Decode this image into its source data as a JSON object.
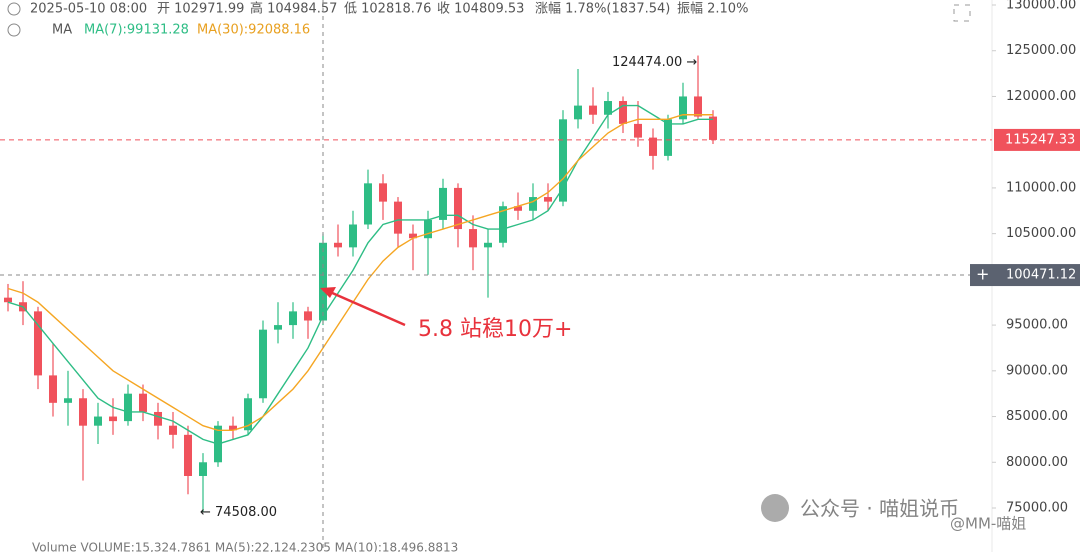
{
  "chart_data": {
    "type": "candlestick",
    "header": {
      "time": "2025-05-10 08:00",
      "open": "开 102971.99",
      "high": "高 104984.57",
      "low": "低 102818.76",
      "close": "收 104809.53",
      "change": "涨幅 1.78%(1837.54)",
      "amplitude": "振幅 2.10%"
    },
    "ma_header": {
      "label": "MA",
      "ma7": "MA(7):99131.28",
      "ma30": "MA(30):92088.16"
    },
    "up_color": "#2ebd85",
    "down_color": "#f0525c",
    "open": [
      98000,
      97500,
      96500,
      89500,
      86500,
      87000,
      84000,
      85000,
      84500,
      87500,
      85500,
      84000,
      83000,
      78500,
      80000,
      84000,
      83500,
      87000,
      94500,
      95000,
      96500,
      95500,
      104000,
      103500,
      106000,
      110500,
      108500,
      105000,
      104500,
      106500,
      110000,
      105500,
      103500,
      104000,
      108000,
      107500,
      109000,
      108500,
      117500,
      119000,
      118000,
      119500,
      117000,
      115500,
      113500,
      117500,
      120000,
      117800
    ],
    "high": [
      99500,
      99800,
      97000,
      93000,
      90000,
      88000,
      86500,
      87000,
      88500,
      88500,
      86500,
      85500,
      84000,
      81000,
      84500,
      85000,
      87500,
      95500,
      97500,
      97500,
      97000,
      105000,
      106000,
      107500,
      112000,
      111500,
      109000,
      106000,
      107500,
      111000,
      110500,
      107000,
      105500,
      108500,
      109500,
      110500,
      110500,
      118500,
      123000,
      121000,
      120500,
      120000,
      119500,
      116500,
      118000,
      121500,
      124474,
      118500
    ],
    "low": [
      96500,
      95000,
      88000,
      85000,
      84000,
      78000,
      82000,
      83000,
      84000,
      84500,
      82500,
      81500,
      76500,
      74508,
      79500,
      82500,
      83000,
      86500,
      93000,
      93500,
      93500,
      95000,
      102500,
      102500,
      105500,
      106500,
      103500,
      101000,
      100500,
      105500,
      103500,
      101000,
      98000,
      103500,
      106500,
      106500,
      107500,
      108000,
      116500,
      117000,
      116500,
      116000,
      114500,
      112000,
      113000,
      117000,
      117500,
      114800
    ],
    "close": [
      97500,
      96500,
      89500,
      86500,
      87000,
      84000,
      85000,
      84500,
      87500,
      85500,
      84000,
      83000,
      78500,
      80000,
      84000,
      83500,
      87000,
      94500,
      95000,
      96500,
      95500,
      104000,
      103500,
      106000,
      110500,
      108500,
      105000,
      104500,
      106500,
      110000,
      105500,
      103500,
      104000,
      108000,
      107500,
      109000,
      108500,
      117500,
      119000,
      118000,
      119500,
      117000,
      115500,
      113500,
      117500,
      120000,
      117800,
      115247.33
    ],
    "series": [
      {
        "name": "MA(7)",
        "color": "#2ebd85",
        "values": [
          97500,
          97000,
          95000,
          93000,
          91000,
          89000,
          87000,
          86000,
          85500,
          85500,
          85000,
          84500,
          83500,
          82500,
          82000,
          82500,
          83000,
          85000,
          87500,
          90000,
          92500,
          96000,
          98500,
          101000,
          104000,
          106000,
          106500,
          106500,
          106500,
          107000,
          107000,
          106000,
          105500,
          105500,
          106000,
          106500,
          107500,
          110000,
          113000,
          115500,
          118000,
          119000,
          119000,
          118000,
          117000,
          117000,
          117500,
          117500
        ]
      },
      {
        "name": "MA(30)",
        "color": "#f5a623",
        "values": [
          99000,
          98500,
          97500,
          96000,
          94500,
          93000,
          91500,
          90000,
          89000,
          88000,
          87000,
          86000,
          85000,
          84000,
          83500,
          83500,
          84000,
          85000,
          86500,
          88000,
          90000,
          92500,
          95000,
          97500,
          100000,
          102000,
          103500,
          104500,
          105000,
          105500,
          106000,
          106500,
          107000,
          107500,
          108000,
          108500,
          109500,
          111000,
          113000,
          114500,
          116000,
          117000,
          117500,
          117500,
          117500,
          118000,
          118000,
          118000
        ]
      }
    ],
    "ylim": [
      75000,
      130000
    ],
    "yticks": [
      {
        "value": 130000,
        "label": "130000.00"
      },
      {
        "value": 125000,
        "label": "125000.00"
      },
      {
        "value": 120000,
        "label": "120000.00"
      },
      {
        "value": 110000,
        "label": "110000.00"
      },
      {
        "value": 105000,
        "label": "105000.00"
      },
      {
        "value": 95000,
        "label": "95000.00"
      },
      {
        "value": 90000,
        "label": "90000.00"
      },
      {
        "value": 85000,
        "label": "85000.00"
      },
      {
        "value": 80000,
        "label": "80000.00"
      },
      {
        "value": 75000,
        "label": "75000.00"
      }
    ],
    "last_price": 115247.33,
    "crosshair_price": 100471.12,
    "max_label": {
      "value": 124474,
      "label": "124474.00 →"
    },
    "min_label": {
      "value": 74508,
      "label": "← 74508.00"
    },
    "annotation": "5.8 站稳10万+",
    "volume_line": "Volume  VOLUME:15,324.7861  MA(5):22,124.2305  MA(10):18,496.8813",
    "watermark": {
      "account": "公众号 · 喵姐说币",
      "author": "@MM-喵姐"
    }
  }
}
